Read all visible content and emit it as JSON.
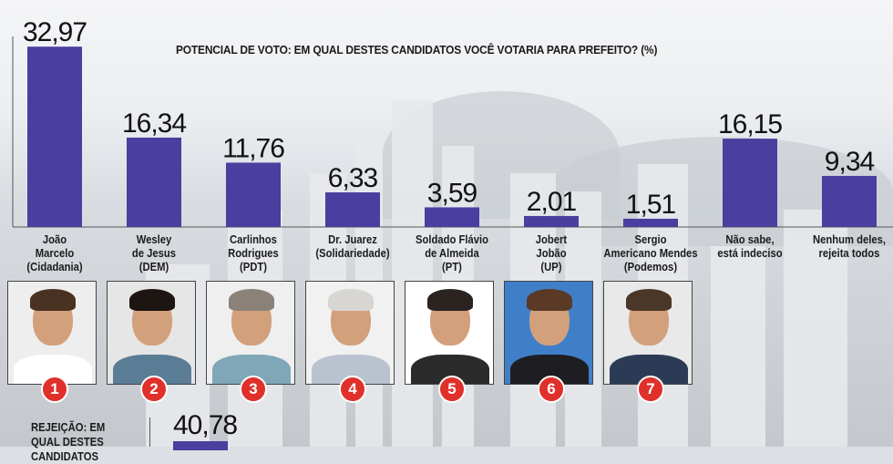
{
  "chart_data": {
    "type": "bar",
    "title": "POTENCIAL DE VOTO: EM QUAL DESTES CANDIDATOS VOCÊ VOTARIA PARA PREFEITO? (%)",
    "categories": [
      "João\nMarcelo\n(Cidadania)",
      "Wesley\nde Jesus\n(DEM)",
      "Carlinhos\nRodrigues\n(PDT)",
      "Dr. Juarez\n(Solidariedade)",
      "Soldado Flávio\nde Almeida\n(PT)",
      "Jobert\nJobão\n(UP)",
      "Sergio\nAmericano Mendes\n(Podemos)",
      "Não sabe,\nestá indeciso",
      "Nenhum deles,\nrejeita todos"
    ],
    "values": [
      32.97,
      16.34,
      11.76,
      6.33,
      3.59,
      2.01,
      1.51,
      16.15,
      9.34
    ],
    "value_labels": [
      "32,97",
      "16,34",
      "11,76",
      "6,33",
      "3,59",
      "2,01",
      "1,51",
      "16,15",
      "9,34"
    ],
    "ylim": [
      0,
      33
    ],
    "bar_color": "#4a3f9e",
    "grid": false
  },
  "candidates": [
    {
      "number": "1",
      "hair": "#4a3222",
      "shirt": "#ffffff",
      "bg": "#eeeeee"
    },
    {
      "number": "2",
      "hair": "#1d1512",
      "shirt": "#5b7c95",
      "bg": "#e6e6e6"
    },
    {
      "number": "3",
      "hair": "#8a8178",
      "shirt": "#7fa7b8",
      "bg": "#efefef"
    },
    {
      "number": "4",
      "hair": "#d8d6d2",
      "shirt": "#b8c3cf",
      "bg": "#f1f1f1"
    },
    {
      "number": "5",
      "hair": "#2a2320",
      "shirt": "#2b2b2b",
      "bg": "#ffffff"
    },
    {
      "number": "6",
      "hair": "#5a3a26",
      "shirt": "#1e1e22",
      "bg": "#3f7fc8"
    },
    {
      "number": "7",
      "hair": "#4b3728",
      "shirt": "#2c3b55",
      "bg": "#e9e9e9"
    }
  ],
  "rejection": {
    "label": "REJEIÇÃO: EM QUAL DESTES CANDIDATOS",
    "first_value_label": "40,78"
  }
}
